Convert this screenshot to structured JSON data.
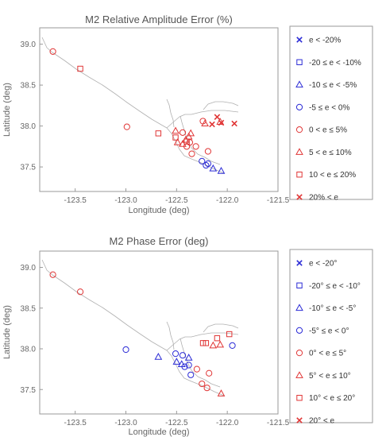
{
  "chart_data": [
    {
      "type": "scatter",
      "title": "M2 Relative Amplitude Error (%)",
      "xlabel": "Longitude (deg)",
      "ylabel": "Latitude (deg)",
      "xlim": [
        -123.85,
        -121.5
      ],
      "ylim": [
        37.2,
        39.2
      ],
      "xticks": [
        -123.5,
        -123.0,
        -122.5,
        -122.0,
        -121.5
      ],
      "xtick_labels": [
        "-123.5",
        "-123.0",
        "-122.5",
        "-122.0",
        "-121.5"
      ],
      "yticks": [
        37.5,
        38.0,
        38.5,
        39.0
      ],
      "ytick_labels": [
        "37.5",
        "38.0",
        "38.5",
        "39.0"
      ],
      "grid": false,
      "legend_position": "right",
      "series": [
        {
          "name": "e < -20%",
          "marker": "x",
          "color": "#2b2bd6",
          "points": []
        },
        {
          "name": "-20 ≤ e < -10%",
          "marker": "square",
          "color": "#2b2bd6",
          "points": []
        },
        {
          "name": "-10 ≤ e < -5%",
          "marker": "triangle",
          "color": "#2b2bd6",
          "points": [
            [
              -122.14,
              37.48
            ],
            [
              -122.06,
              37.45
            ]
          ]
        },
        {
          "name": "-5 ≤ e < 0%",
          "marker": "circle",
          "color": "#2b2bd6",
          "points": [
            [
              -122.25,
              37.57
            ],
            [
              -122.21,
              37.52
            ],
            [
              -122.19,
              37.54
            ]
          ]
        },
        {
          "name": "0 < e ≤ 5%",
          "marker": "circle",
          "color": "#e03535",
          "points": [
            [
              -123.72,
              38.91
            ],
            [
              -122.99,
              37.99
            ],
            [
              -122.44,
              37.92
            ],
            [
              -122.4,
              37.75
            ],
            [
              -122.37,
              37.8
            ],
            [
              -122.35,
              37.66
            ],
            [
              -122.31,
              37.75
            ],
            [
              -122.24,
              38.06
            ],
            [
              -122.19,
              37.69
            ]
          ]
        },
        {
          "name": "5 < e ≤ 10%",
          "marker": "triangle",
          "color": "#e03535",
          "points": [
            [
              -122.51,
              37.94
            ],
            [
              -122.49,
              37.8
            ],
            [
              -122.44,
              37.78
            ],
            [
              -122.41,
              37.83
            ],
            [
              -122.38,
              37.87
            ],
            [
              -122.36,
              37.91
            ],
            [
              -122.22,
              38.03
            ],
            [
              -122.07,
              38.05
            ]
          ]
        },
        {
          "name": "10 < e ≤ 20%",
          "marker": "square",
          "color": "#e03535",
          "points": [
            [
              -123.45,
              38.7
            ],
            [
              -122.68,
              37.91
            ],
            [
              -122.51,
              37.86
            ],
            [
              -122.4,
              37.81
            ]
          ]
        },
        {
          "name": "20% < e",
          "marker": "x",
          "color": "#e03535",
          "points": [
            [
              -122.15,
              38.02
            ],
            [
              -122.1,
              38.11
            ],
            [
              -122.06,
              38.04
            ],
            [
              -121.93,
              38.03
            ]
          ]
        }
      ]
    },
    {
      "type": "scatter",
      "title": "M2 Phase Error (deg)",
      "xlabel": "Longitude (deg)",
      "ylabel": "Latitude (deg)",
      "xlim": [
        -123.85,
        -121.5
      ],
      "ylim": [
        37.2,
        39.2
      ],
      "xticks": [
        -123.5,
        -123.0,
        -122.5,
        -122.0,
        -121.5
      ],
      "xtick_labels": [
        "-123.5",
        "-123.0",
        "-122.5",
        "-122.0",
        "-121.5"
      ],
      "yticks": [
        37.5,
        38.0,
        38.5,
        39.0
      ],
      "ytick_labels": [
        "37.5",
        "38.0",
        "38.5",
        "39.0"
      ],
      "grid": false,
      "legend_position": "right",
      "series": [
        {
          "name": "e < -20°",
          "marker": "x",
          "color": "#2b2bd6",
          "points": []
        },
        {
          "name": "-20° ≤ e < -10°",
          "marker": "square",
          "color": "#2b2bd6",
          "points": []
        },
        {
          "name": "-10° ≤ e < -5°",
          "marker": "triangle",
          "color": "#2b2bd6",
          "points": [
            [
              -122.68,
              37.9
            ],
            [
              -122.5,
              37.84
            ],
            [
              -122.45,
              37.81
            ],
            [
              -122.38,
              37.89
            ]
          ]
        },
        {
          "name": "-5° ≤ e < 0°",
          "marker": "circle",
          "color": "#2b2bd6",
          "points": [
            [
              -123.0,
              37.99
            ],
            [
              -122.51,
              37.94
            ],
            [
              -122.44,
              37.92
            ],
            [
              -122.42,
              37.78
            ],
            [
              -122.38,
              37.8
            ],
            [
              -122.36,
              37.68
            ],
            [
              -121.95,
              38.04
            ]
          ]
        },
        {
          "name": "0° < e ≤ 5°",
          "marker": "circle",
          "color": "#e03535",
          "points": [
            [
              -123.72,
              38.91
            ],
            [
              -123.45,
              38.7
            ],
            [
              -122.3,
              37.75
            ],
            [
              -122.25,
              37.57
            ],
            [
              -122.2,
              37.52
            ],
            [
              -122.18,
              37.7
            ]
          ]
        },
        {
          "name": "5° < e ≤ 10°",
          "marker": "triangle",
          "color": "#e03535",
          "points": [
            [
              -122.14,
              38.04
            ],
            [
              -122.07,
              38.05
            ],
            [
              -122.06,
              37.45
            ]
          ]
        },
        {
          "name": "10° < e ≤ 20°",
          "marker": "square",
          "color": "#e03535",
          "points": [
            [
              -122.24,
              38.07
            ],
            [
              -122.21,
              38.07
            ],
            [
              -122.1,
              38.13
            ],
            [
              -121.98,
              38.18
            ]
          ]
        },
        {
          "name": "20° < e",
          "marker": "x",
          "color": "#e03535",
          "points": []
        }
      ]
    }
  ]
}
